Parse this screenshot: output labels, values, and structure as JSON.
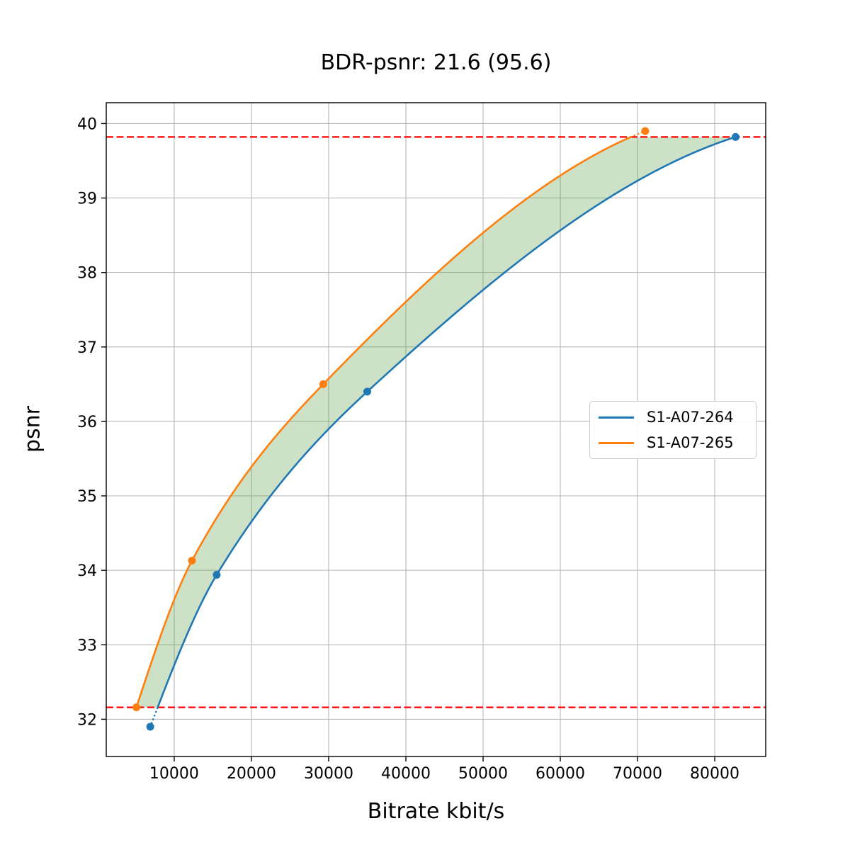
{
  "chart_data": {
    "type": "line",
    "title": "BDR-psnr: 21.6 (95.6)",
    "xlabel": "Bitrate kbit/s",
    "ylabel": "psnr",
    "xlim": [
      1200,
      86600
    ],
    "ylim": [
      31.5,
      40.28
    ],
    "xticks": [
      10000,
      20000,
      30000,
      40000,
      50000,
      60000,
      70000,
      80000
    ],
    "yticks": [
      32,
      33,
      34,
      35,
      36,
      37,
      38,
      39,
      40
    ],
    "grid": true,
    "legend_position": "center right",
    "series": [
      {
        "name": "S1-A07-264",
        "color": "#1f77b4",
        "x": [
          6900,
          15500,
          35000,
          82700
        ],
        "y": [
          31.9,
          33.94,
          36.4,
          39.82
        ]
      },
      {
        "name": "S1-A07-265",
        "color": "#ff7f0e",
        "x": [
          5100,
          12300,
          29300,
          71000
        ],
        "y": [
          32.16,
          34.13,
          36.5,
          39.9
        ]
      }
    ],
    "hlines": {
      "values": [
        32.16,
        39.82
      ],
      "color": "#ff0000",
      "style": "dashed"
    },
    "fill_between": {
      "color": "#5a9a46",
      "opacity": 0.3,
      "clip_to_hlines": true
    },
    "colors": {
      "grid": "#b0b0b0",
      "spine": "#000000",
      "background": "#ffffff"
    }
  }
}
